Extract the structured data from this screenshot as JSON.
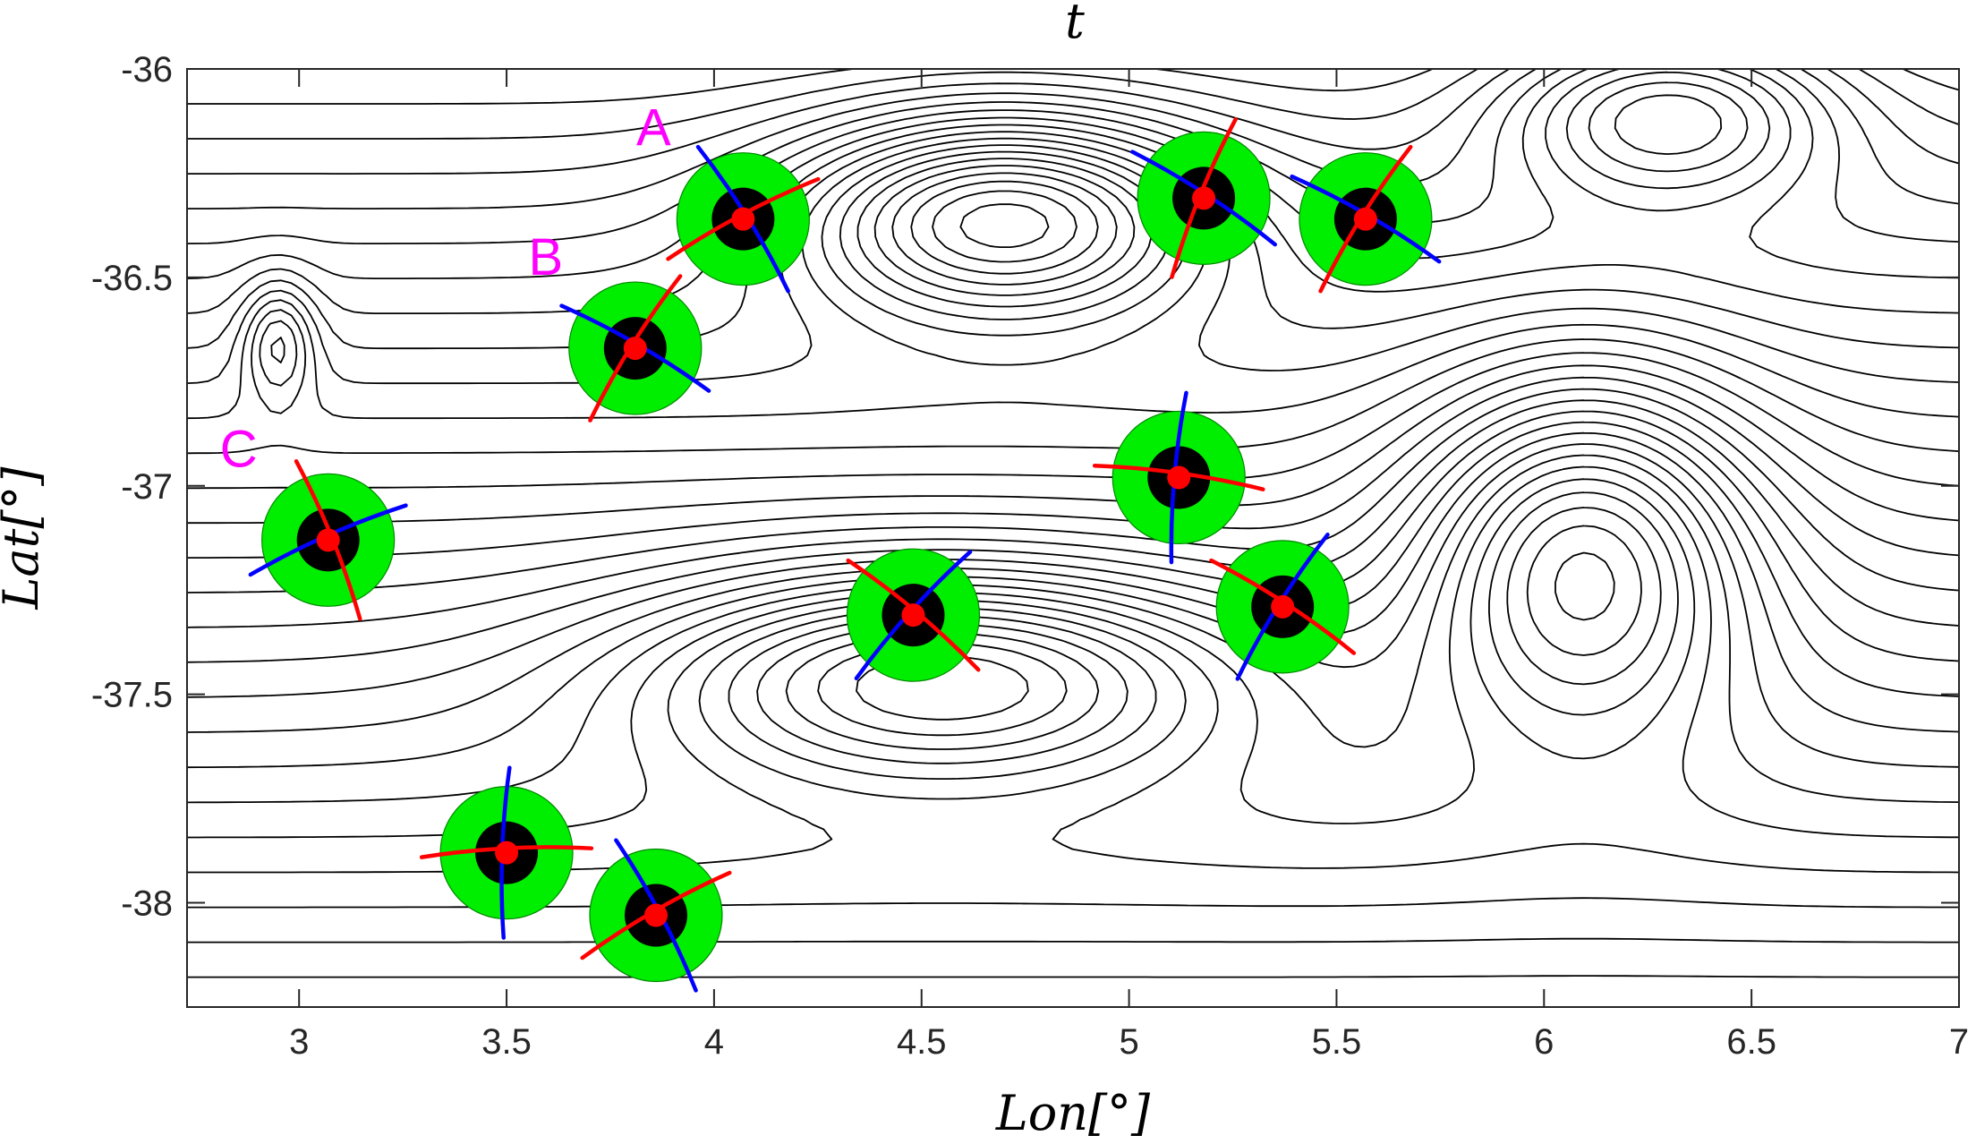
{
  "title": "t",
  "chart_data": {
    "type": "contour",
    "title": "t",
    "xlabel": "Lon[°]",
    "ylabel": "Lat[°]",
    "xlim": [
      2.73,
      7.0
    ],
    "ylim": [
      -38.25,
      -36.0
    ],
    "xticks": [
      "3",
      "3.5",
      "4",
      "4.5",
      "5",
      "5.5",
      "6",
      "6.5",
      "7"
    ],
    "xtick_values": [
      3,
      3.5,
      4,
      4.5,
      5,
      5.5,
      6,
      6.5,
      7
    ],
    "yticks": [
      "-36",
      "-36.5",
      "-37",
      "-37.5",
      "-38"
    ],
    "ytick_values": [
      -36,
      -36.5,
      -37,
      -37.5,
      -38
    ],
    "grid": false,
    "colors": {
      "contour": "#000000",
      "outer_disk": "#00ee00",
      "inner_disk": "#000000",
      "center": "#ff0000",
      "red_axis": "#ff0000",
      "blue_axis": "#0000ff",
      "label": "#ff00ff"
    },
    "markers": [
      {
        "label": "A",
        "lon": 4.07,
        "lat": -36.36,
        "red_angle": 28,
        "blue_angle": -58
      },
      {
        "label": "B",
        "lon": 3.81,
        "lat": -36.67,
        "red_angle": 58,
        "blue_angle": -30
      },
      {
        "label": "C",
        "lon": 3.07,
        "lat": -37.13,
        "red_angle": -68,
        "blue_angle": 24
      },
      {
        "label": "",
        "lon": 5.18,
        "lat": -36.31,
        "red_angle": 68,
        "blue_angle": -33
      },
      {
        "label": "",
        "lon": 5.57,
        "lat": -36.36,
        "red_angle": 58,
        "blue_angle": -30
      },
      {
        "label": "",
        "lon": 5.12,
        "lat": -36.98,
        "red_angle": -8,
        "blue_angle": 85
      },
      {
        "label": "",
        "lon": 4.48,
        "lat": -37.31,
        "red_angle": -40,
        "blue_angle": 48
      },
      {
        "label": "",
        "lon": 5.37,
        "lat": -37.29,
        "red_angle": -33,
        "blue_angle": 58
      },
      {
        "label": "",
        "lon": 3.5,
        "lat": -37.88,
        "red_angle": 3,
        "blue_angle": 88
      },
      {
        "label": "",
        "lon": 3.86,
        "lat": -38.03,
        "red_angle": 30,
        "blue_angle": -62
      }
    ],
    "fields": {
      "base_slope": -0.2,
      "background_scale": 1.0,
      "features": [
        {
          "type": "ridge",
          "lon": 4.7,
          "lat": -36.35,
          "amp": 2.4,
          "sx": 0.35,
          "sy": 0.17
        },
        {
          "type": "ridge",
          "lon": 4.55,
          "lat": -37.45,
          "amp": 2.1,
          "sx": 0.5,
          "sy": 0.18
        },
        {
          "type": "ridge",
          "lon": 6.1,
          "lat": -37.15,
          "amp": 2.2,
          "sx": 0.28,
          "sy": 0.3
        },
        {
          "type": "ridge",
          "lon": 6.3,
          "lat": -36.1,
          "amp": 1.6,
          "sx": 0.28,
          "sy": 0.15
        },
        {
          "type": "ridge",
          "lon": 2.95,
          "lat": -36.65,
          "amp": 0.9,
          "sx": 0.06,
          "sy": 0.1
        }
      ]
    }
  }
}
